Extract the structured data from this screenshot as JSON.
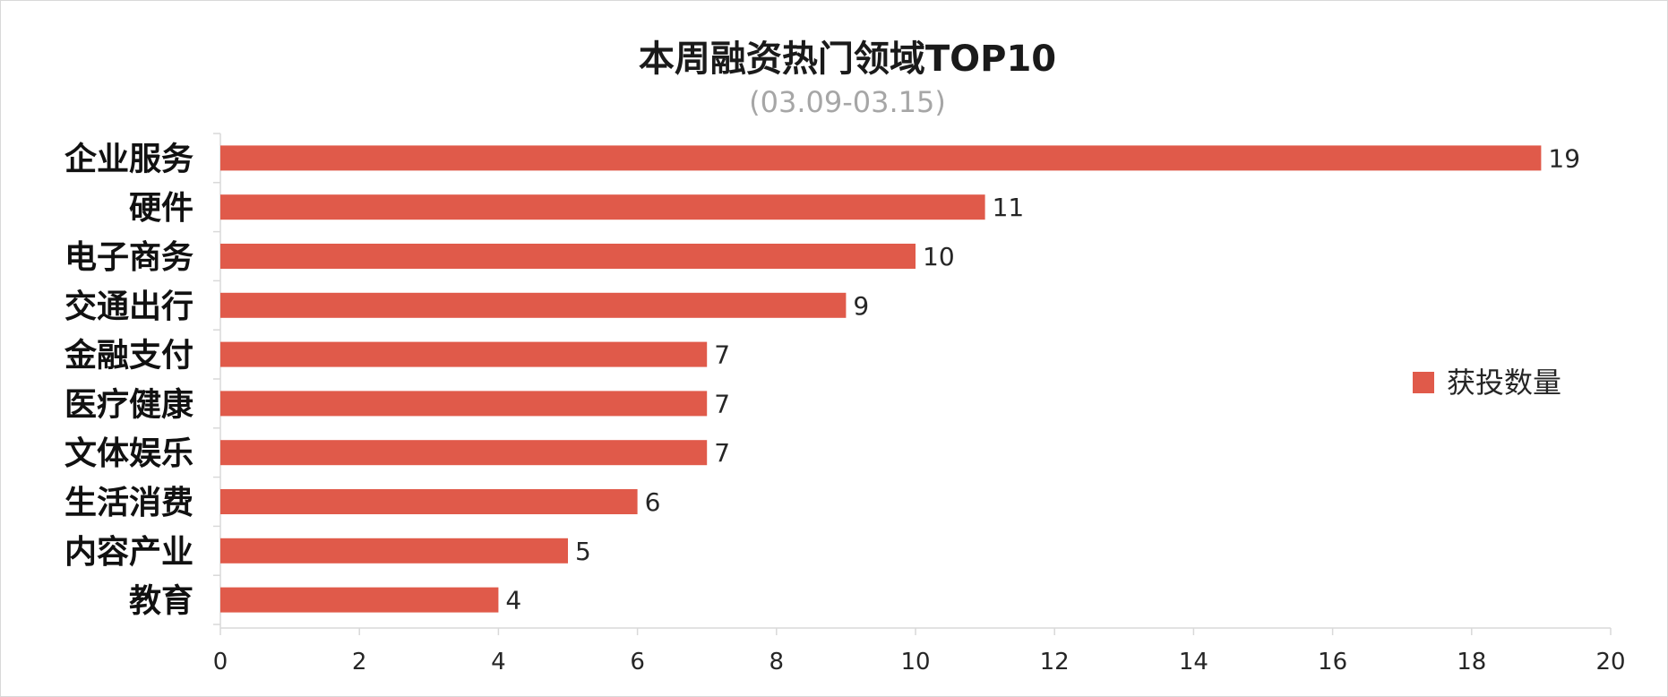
{
  "chart_data": {
    "type": "bar",
    "orientation": "horizontal",
    "title": "本周融资热门领域TOP10",
    "subtitle": "(03.09-03.15)",
    "categories": [
      "企业服务",
      "硬件",
      "电子商务",
      "交通出行",
      "金融支付",
      "医疗健康",
      "文体娱乐",
      "生活消费",
      "内容产业",
      "教育"
    ],
    "series": [
      {
        "name": "获投数量",
        "values": [
          19,
          11,
          10,
          9,
          7,
          7,
          7,
          6,
          5,
          4
        ],
        "color": "#e05a4a"
      }
    ],
    "xlim": [
      0,
      20
    ],
    "x_ticks": [
      0,
      2,
      4,
      6,
      8,
      10,
      12,
      14,
      16,
      18,
      20
    ],
    "data_labels": true,
    "grid": false,
    "legend": "right"
  }
}
